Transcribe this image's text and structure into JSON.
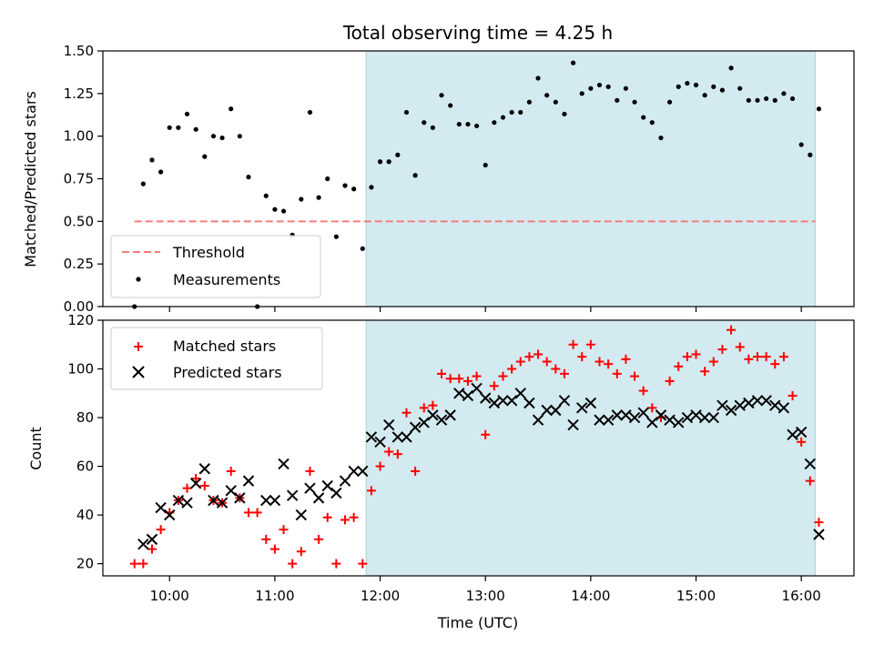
{
  "chart_data": [
    {
      "type": "scatter",
      "title": "Total observing time = 4.25 h",
      "ylabel": "Matched/Predicted stars",
      "xlabel": "",
      "xlim": [
        "09:22",
        "16:30"
      ],
      "ylim": [
        0,
        1.5
      ],
      "yticks": [
        0.0,
        0.25,
        0.5,
        0.75,
        1.0,
        1.25,
        1.5
      ],
      "ytick_labels": [
        "0.00",
        "0.25",
        "0.50",
        "0.75",
        "1.00",
        "1.25",
        "1.50"
      ],
      "shaded_region": {
        "start": "11:52",
        "end": "16:08",
        "color": "#d3eaf0"
      },
      "threshold": {
        "name": "Threshold",
        "value": 0.5,
        "start": "09:40",
        "end": "16:08",
        "color": "#f47c7c"
      },
      "series": [
        {
          "name": "Measurements",
          "color": "#000000",
          "points": [
            [
              "09:40",
              0.0
            ],
            [
              "09:45",
              0.72
            ],
            [
              "09:50",
              0.86
            ],
            [
              "09:55",
              0.79
            ],
            [
              "10:00",
              1.05
            ],
            [
              "10:05",
              1.05
            ],
            [
              "10:10",
              1.13
            ],
            [
              "10:15",
              1.04
            ],
            [
              "10:20",
              0.88
            ],
            [
              "10:25",
              1.0
            ],
            [
              "10:30",
              0.99
            ],
            [
              "10:35",
              1.16
            ],
            [
              "10:40",
              1.0
            ],
            [
              "10:45",
              0.76
            ],
            [
              "10:50",
              0.0
            ],
            [
              "10:55",
              0.65
            ],
            [
              "11:00",
              0.57
            ],
            [
              "11:05",
              0.56
            ],
            [
              "11:10",
              0.42
            ],
            [
              "11:15",
              0.63
            ],
            [
              "11:20",
              1.14
            ],
            [
              "11:25",
              0.64
            ],
            [
              "11:30",
              0.75
            ],
            [
              "11:35",
              0.41
            ],
            [
              "11:40",
              0.71
            ],
            [
              "11:45",
              0.69
            ],
            [
              "11:50",
              0.34
            ],
            [
              "11:55",
              0.7
            ],
            [
              "12:00",
              0.85
            ],
            [
              "12:05",
              0.85
            ],
            [
              "12:10",
              0.89
            ],
            [
              "12:15",
              1.14
            ],
            [
              "12:20",
              0.77
            ],
            [
              "12:25",
              1.08
            ],
            [
              "12:30",
              1.05
            ],
            [
              "12:35",
              1.24
            ],
            [
              "12:40",
              1.18
            ],
            [
              "12:45",
              1.07
            ],
            [
              "12:50",
              1.07
            ],
            [
              "12:55",
              1.06
            ],
            [
              "13:00",
              0.83
            ],
            [
              "13:05",
              1.08
            ],
            [
              "13:10",
              1.11
            ],
            [
              "13:15",
              1.14
            ],
            [
              "13:20",
              1.14
            ],
            [
              "13:25",
              1.2
            ],
            [
              "13:30",
              1.34
            ],
            [
              "13:35",
              1.24
            ],
            [
              "13:40",
              1.2
            ],
            [
              "13:45",
              1.13
            ],
            [
              "13:50",
              1.43
            ],
            [
              "13:55",
              1.25
            ],
            [
              "14:00",
              1.28
            ],
            [
              "14:05",
              1.3
            ],
            [
              "14:10",
              1.29
            ],
            [
              "14:15",
              1.21
            ],
            [
              "14:20",
              1.28
            ],
            [
              "14:25",
              1.2
            ],
            [
              "14:30",
              1.11
            ],
            [
              "14:35",
              1.08
            ],
            [
              "14:40",
              0.99
            ],
            [
              "14:45",
              1.2
            ],
            [
              "14:50",
              1.29
            ],
            [
              "14:55",
              1.31
            ],
            [
              "15:00",
              1.3
            ],
            [
              "15:05",
              1.24
            ],
            [
              "15:10",
              1.29
            ],
            [
              "15:15",
              1.27
            ],
            [
              "15:20",
              1.4
            ],
            [
              "15:25",
              1.28
            ],
            [
              "15:30",
              1.21
            ],
            [
              "15:35",
              1.21
            ],
            [
              "15:40",
              1.22
            ],
            [
              "15:45",
              1.21
            ],
            [
              "15:50",
              1.25
            ],
            [
              "15:55",
              1.22
            ],
            [
              "16:00",
              0.95
            ],
            [
              "16:05",
              0.89
            ],
            [
              "16:10",
              1.16
            ]
          ]
        }
      ],
      "legend": {
        "location": "lower-left",
        "entries": [
          "Threshold",
          "Measurements"
        ]
      }
    },
    {
      "type": "scatter",
      "title": "",
      "ylabel": "Count",
      "xlabel": "Time (UTC)",
      "xlim": [
        "09:22",
        "16:30"
      ],
      "ylim": [
        15,
        120
      ],
      "yticks": [
        20,
        40,
        60,
        80,
        100,
        120
      ],
      "ytick_labels": [
        "20",
        "40",
        "60",
        "80",
        "100",
        "120"
      ],
      "xticks": [
        "10:00",
        "11:00",
        "12:00",
        "13:00",
        "14:00",
        "15:00",
        "16:00"
      ],
      "shaded_region": {
        "start": "11:52",
        "end": "16:08",
        "color": "#d3eaf0"
      },
      "series": [
        {
          "name": "Matched stars",
          "marker": "plus",
          "color": "#ff0000",
          "points": [
            [
              "09:40",
              20
            ],
            [
              "09:45",
              20
            ],
            [
              "09:50",
              26
            ],
            [
              "09:55",
              34
            ],
            [
              "10:00",
              41
            ],
            [
              "10:05",
              46
            ],
            [
              "10:10",
              51
            ],
            [
              "10:15",
              55
            ],
            [
              "10:20",
              52
            ],
            [
              "10:25",
              46
            ],
            [
              "10:30",
              45
            ],
            [
              "10:35",
              58
            ],
            [
              "10:40",
              47
            ],
            [
              "10:45",
              41
            ],
            [
              "10:50",
              41
            ],
            [
              "10:55",
              30
            ],
            [
              "11:00",
              26
            ],
            [
              "11:05",
              34
            ],
            [
              "11:10",
              20
            ],
            [
              "11:15",
              25
            ],
            [
              "11:20",
              58
            ],
            [
              "11:25",
              30
            ],
            [
              "11:30",
              39
            ],
            [
              "11:35",
              20
            ],
            [
              "11:40",
              38
            ],
            [
              "11:45",
              39
            ],
            [
              "11:50",
              20
            ],
            [
              "11:55",
              50
            ],
            [
              "12:00",
              60
            ],
            [
              "12:05",
              66
            ],
            [
              "12:10",
              65
            ],
            [
              "12:15",
              82
            ],
            [
              "12:20",
              58
            ],
            [
              "12:25",
              84
            ],
            [
              "12:30",
              85
            ],
            [
              "12:35",
              98
            ],
            [
              "12:40",
              96
            ],
            [
              "12:45",
              96
            ],
            [
              "12:50",
              95
            ],
            [
              "12:55",
              97
            ],
            [
              "13:00",
              73
            ],
            [
              "13:05",
              93
            ],
            [
              "13:10",
              97
            ],
            [
              "13:15",
              100
            ],
            [
              "13:20",
              103
            ],
            [
              "13:25",
              105
            ],
            [
              "13:30",
              106
            ],
            [
              "13:35",
              103
            ],
            [
              "13:40",
              100
            ],
            [
              "13:45",
              98
            ],
            [
              "13:50",
              110
            ],
            [
              "13:55",
              105
            ],
            [
              "14:00",
              110
            ],
            [
              "14:05",
              103
            ],
            [
              "14:10",
              102
            ],
            [
              "14:15",
              98
            ],
            [
              "14:20",
              104
            ],
            [
              "14:25",
              97
            ],
            [
              "14:30",
              91
            ],
            [
              "14:35",
              84
            ],
            [
              "14:40",
              80
            ],
            [
              "14:45",
              95
            ],
            [
              "14:50",
              101
            ],
            [
              "14:55",
              105
            ],
            [
              "15:00",
              106
            ],
            [
              "15:05",
              99
            ],
            [
              "15:10",
              103
            ],
            [
              "15:15",
              108
            ],
            [
              "15:20",
              116
            ],
            [
              "15:25",
              109
            ],
            [
              "15:30",
              104
            ],
            [
              "15:35",
              105
            ],
            [
              "15:40",
              105
            ],
            [
              "15:45",
              102
            ],
            [
              "15:50",
              105
            ],
            [
              "15:55",
              89
            ],
            [
              "16:00",
              70
            ],
            [
              "16:05",
              54
            ],
            [
              "16:10",
              37
            ]
          ]
        },
        {
          "name": "Predicted stars",
          "marker": "x",
          "color": "#000000",
          "points": [
            [
              "09:45",
              28
            ],
            [
              "09:50",
              30
            ],
            [
              "09:55",
              43
            ],
            [
              "10:00",
              40
            ],
            [
              "10:05",
              46
            ],
            [
              "10:10",
              45
            ],
            [
              "10:15",
              53
            ],
            [
              "10:20",
              59
            ],
            [
              "10:25",
              46
            ],
            [
              "10:30",
              45
            ],
            [
              "10:35",
              50
            ],
            [
              "10:40",
              47
            ],
            [
              "10:45",
              54
            ],
            [
              "10:55",
              46
            ],
            [
              "11:00",
              46
            ],
            [
              "11:05",
              61
            ],
            [
              "11:10",
              48
            ],
            [
              "11:15",
              40
            ],
            [
              "11:20",
              51
            ],
            [
              "11:25",
              47
            ],
            [
              "11:30",
              52
            ],
            [
              "11:35",
              49
            ],
            [
              "11:40",
              54
            ],
            [
              "11:45",
              58
            ],
            [
              "11:50",
              58
            ],
            [
              "11:55",
              72
            ],
            [
              "12:00",
              70
            ],
            [
              "12:05",
              77
            ],
            [
              "12:10",
              72
            ],
            [
              "12:15",
              72
            ],
            [
              "12:20",
              76
            ],
            [
              "12:25",
              78
            ],
            [
              "12:30",
              81
            ],
            [
              "12:35",
              79
            ],
            [
              "12:40",
              81
            ],
            [
              "12:45",
              90
            ],
            [
              "12:50",
              89
            ],
            [
              "12:55",
              92
            ],
            [
              "13:00",
              88
            ],
            [
              "13:05",
              86
            ],
            [
              "13:10",
              87
            ],
            [
              "13:15",
              87
            ],
            [
              "13:20",
              90
            ],
            [
              "13:25",
              86
            ],
            [
              "13:30",
              79
            ],
            [
              "13:35",
              83
            ],
            [
              "13:40",
              83
            ],
            [
              "13:45",
              87
            ],
            [
              "13:50",
              77
            ],
            [
              "13:55",
              84
            ],
            [
              "14:00",
              86
            ],
            [
              "14:05",
              79
            ],
            [
              "14:10",
              79
            ],
            [
              "14:15",
              81
            ],
            [
              "14:20",
              81
            ],
            [
              "14:25",
              80
            ],
            [
              "14:30",
              82
            ],
            [
              "14:35",
              78
            ],
            [
              "14:40",
              81
            ],
            [
              "14:45",
              79
            ],
            [
              "14:50",
              78
            ],
            [
              "14:55",
              80
            ],
            [
              "15:00",
              81
            ],
            [
              "15:05",
              80
            ],
            [
              "15:10",
              80
            ],
            [
              "15:15",
              85
            ],
            [
              "15:20",
              83
            ],
            [
              "15:25",
              85
            ],
            [
              "15:30",
              86
            ],
            [
              "15:35",
              87
            ],
            [
              "15:40",
              87
            ],
            [
              "15:45",
              85
            ],
            [
              "15:50",
              84
            ],
            [
              "15:55",
              73
            ],
            [
              "16:00",
              74
            ],
            [
              "16:05",
              61
            ],
            [
              "16:10",
              32
            ]
          ]
        }
      ],
      "legend": {
        "location": "upper-left",
        "entries": [
          "Matched stars",
          "Predicted stars"
        ]
      }
    }
  ]
}
